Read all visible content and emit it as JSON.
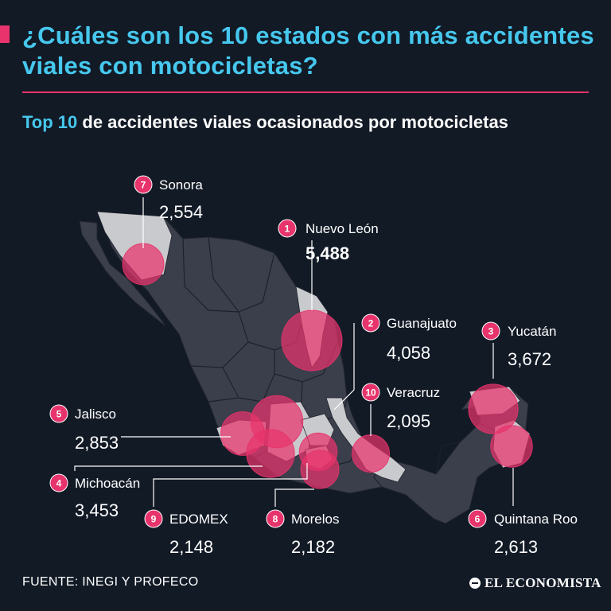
{
  "header": {
    "title": "¿Cuáles son los 10 estados con más accidentes viales con motocicletas?",
    "subtitle_highlight": "Top 10",
    "subtitle_rest": " de accidentes viales ocasionados por motocicletas"
  },
  "footer": {
    "source": "FUENTE: INEGI Y PROFECO",
    "brand": "EL ECONOMISTA"
  },
  "colors": {
    "background": "#121a26",
    "title": "#46c8ee",
    "accent": "#e8336c",
    "map_land": "#3b3f4b",
    "map_land_light": "#c9cacd",
    "bubble": "#e8336c"
  },
  "chart_data": {
    "type": "bubble-map",
    "title": "Top 10 de accidentes viales ocasionados por motocicletas",
    "units": "accidentes",
    "states": [
      {
        "rank": 1,
        "name": "Nuevo León",
        "value": 5488,
        "value_label": "5,488"
      },
      {
        "rank": 2,
        "name": "Guanajuato",
        "value": 4058,
        "value_label": "4,058"
      },
      {
        "rank": 3,
        "name": "Yucatán",
        "value": 3672,
        "value_label": "3,672"
      },
      {
        "rank": 4,
        "name": "Michoacán",
        "value": 3453,
        "value_label": "3,453"
      },
      {
        "rank": 5,
        "name": "Jalisco",
        "value": 2853,
        "value_label": "2,853"
      },
      {
        "rank": 6,
        "name": "Quintana Roo",
        "value": 2613,
        "value_label": "2,613"
      },
      {
        "rank": 7,
        "name": "Sonora",
        "value": 2554,
        "value_label": "2,554"
      },
      {
        "rank": 8,
        "name": "Morelos",
        "value": 2182,
        "value_label": "2,182"
      },
      {
        "rank": 9,
        "name": "EDOMEX",
        "value": 2148,
        "value_label": "2,148"
      },
      {
        "rank": 10,
        "name": "Veracruz",
        "value": 2095,
        "value_label": "2,095"
      }
    ]
  }
}
